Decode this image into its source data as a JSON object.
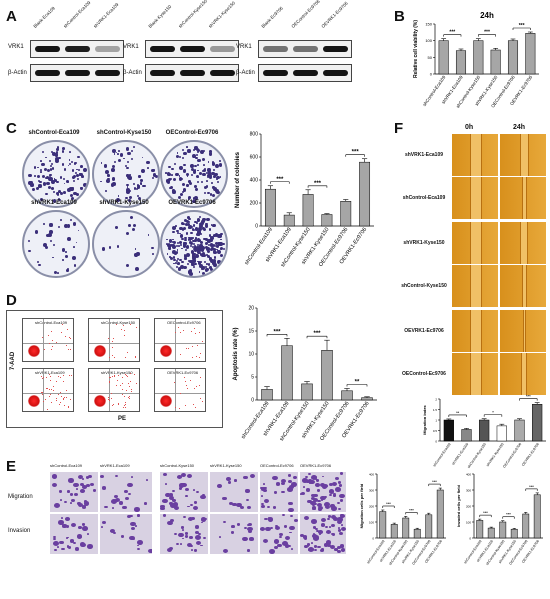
{
  "panels": {
    "A": {
      "label": "A",
      "blots": [
        {
          "lanes": [
            "Blank-Eca109",
            "shControl-Eca109",
            "shVRK1-Eca109"
          ],
          "rows": [
            "VRK1",
            "β-Actin"
          ],
          "vrk1": [
            1.0,
            0.95,
            0.25
          ]
        },
        {
          "lanes": [
            "Blank-Kyse150",
            "shControl-Kyse150",
            "shVRK1-Kyse150"
          ],
          "rows": [
            "VRK1",
            "β-Actin"
          ],
          "vrk1": [
            1.0,
            1.0,
            0.3
          ]
        },
        {
          "lanes": [
            "Blank-Ec9706",
            "OEControl-Ec9706",
            "OEVRK1-Ec9706"
          ],
          "rows": [
            "VRK1",
            "β-Actin"
          ],
          "vrk1": [
            0.5,
            0.5,
            1.0
          ]
        }
      ]
    },
    "B": {
      "label": "B"
    },
    "C": {
      "label": "C",
      "dishes": [
        "shControl-Eca109",
        "shControl-Kyse150",
        "OEControl-Ec9706",
        "shVRK1-Eca109",
        "shVRK1-Kyse150",
        "OEVRK1-Ec9706"
      ]
    },
    "D": {
      "label": "D",
      "flow_labels": [
        "shControl-Eca109",
        "shControl-Kyse150",
        "OEControl-Ec9706",
        "shVRK1-Eca109",
        "shVRK1-Kyse150",
        "OEVRK1-Ec9706"
      ],
      "y_axis": "7-AAD",
      "x_axis": "PE"
    },
    "E": {
      "label": "E",
      "col_labels": [
        "shControl-Eca109",
        "shVRK1-Eca109",
        "shControl-Kyse150",
        "shVRK1-Kyse150",
        "OEControl-Ec9706",
        "OEVRK1-Ec9706"
      ],
      "row_labels": [
        "Migration",
        "Invasion"
      ]
    },
    "F": {
      "label": "F",
      "time_labels": [
        "0h",
        "24h"
      ],
      "row_labels": [
        "shVRK1-Eca109",
        "shControl-Eca109",
        "shVRK1-Kyse150",
        "shControl-Kyse150",
        "OEVRK1-Ec9706",
        "OEControl-Ec9706"
      ]
    }
  },
  "chart_data": [
    {
      "id": "B",
      "type": "bar",
      "title": "24h",
      "ylabel": "Relative cell viability (%)",
      "categories": [
        "shControl-Eca109",
        "shVRK1-Eca109",
        "shControl-Kyse150",
        "shVRK1-Kyse150",
        "OEControl-Ec9706",
        "OEVRK1-Ec9706"
      ],
      "values": [
        100,
        70,
        100,
        72,
        100,
        122
      ],
      "errors": [
        6,
        5,
        6,
        5,
        5,
        4
      ],
      "ylim": [
        0,
        150
      ],
      "yticks": [
        0,
        50,
        100,
        150
      ],
      "significance": [
        "***",
        "***",
        "***"
      ]
    },
    {
      "id": "C",
      "type": "bar",
      "ylabel": "Number of colonies",
      "categories": [
        "shControl-Eca109",
        "shVRK1-Eca109",
        "shControl-Kyse150",
        "shVRK1-Kyse150",
        "OEControl-Ec9706",
        "OEVRK1-Ec9706"
      ],
      "values": [
        320,
        95,
        275,
        100,
        215,
        555
      ],
      "errors": [
        30,
        20,
        40,
        8,
        15,
        30
      ],
      "ylim": [
        0,
        800
      ],
      "yticks": [
        0,
        200,
        400,
        600,
        800
      ],
      "significance": [
        "***",
        "***",
        "***"
      ]
    },
    {
      "id": "D",
      "type": "bar",
      "ylabel": "Apoptosis rate (%)",
      "categories": [
        "shControl-Eca109",
        "shVRK1-Eca109",
        "shControl-Kyse150",
        "shVRK1-Kyse150",
        "OEControl-Ec9706",
        "OEVRK1-Ec9706"
      ],
      "values": [
        2.3,
        11.8,
        3.5,
        10.8,
        2.0,
        0.5
      ],
      "errors": [
        0.6,
        1.6,
        0.5,
        2.2,
        0.5,
        0.2
      ],
      "ylim": [
        0,
        20
      ],
      "yticks": [
        0,
        5,
        10,
        15,
        20
      ],
      "significance": [
        "***",
        "***",
        "**"
      ]
    },
    {
      "id": "E-migration",
      "type": "bar",
      "ylabel": "Migration cells per field",
      "categories": [
        "shControl-Eca109",
        "shVRK1-Eca109",
        "shControl-Kyse150",
        "shVRK1-Kyse150",
        "OEControl-Ec9706",
        "OEVRK1-Ec9706"
      ],
      "values": [
        165,
        85,
        125,
        55,
        145,
        300
      ],
      "errors": [
        10,
        8,
        10,
        6,
        10,
        12
      ],
      "ylim": [
        0,
        400
      ],
      "yticks": [
        0,
        100,
        200,
        300,
        400
      ],
      "significance": [
        "***",
        "***",
        "***"
      ]
    },
    {
      "id": "E-invasion",
      "type": "bar",
      "ylabel": "Invaded cells per field",
      "categories": [
        "shControl-Eca109",
        "shVRK1-Eca109",
        "shControl-Kyse150",
        "shVRK1-Kyse150",
        "OEControl-Ec9706",
        "OEVRK1-Ec9706"
      ],
      "values": [
        110,
        62,
        100,
        55,
        150,
        270
      ],
      "errors": [
        8,
        6,
        8,
        5,
        10,
        12
      ],
      "ylim": [
        0,
        400
      ],
      "yticks": [
        0,
        100,
        200,
        300,
        400
      ],
      "significance": [
        "***",
        "***",
        "***"
      ]
    },
    {
      "id": "F",
      "type": "bar",
      "ylabel": "Migration index",
      "categories": [
        "shControl-Eca109",
        "shVRK1-Eca109",
        "shControl-Kyse150",
        "shVRK1-Kyse150",
        "OEControl-Ec9706",
        "OEVRK1-Ec9706"
      ],
      "values": [
        1.0,
        0.55,
        1.0,
        0.72,
        1.0,
        1.75
      ],
      "errors": [
        0.05,
        0.05,
        0.06,
        0.08,
        0.06,
        0.08
      ],
      "ylim": [
        0,
        2.0
      ],
      "yticks": [
        0,
        0.5,
        1.0,
        1.5,
        2.0
      ],
      "colors": [
        "#111111",
        "#888888",
        "#555555",
        "#ffffff",
        "#aaaaaa",
        "#666666"
      ],
      "significance": [
        "**",
        "*",
        "***"
      ]
    }
  ]
}
